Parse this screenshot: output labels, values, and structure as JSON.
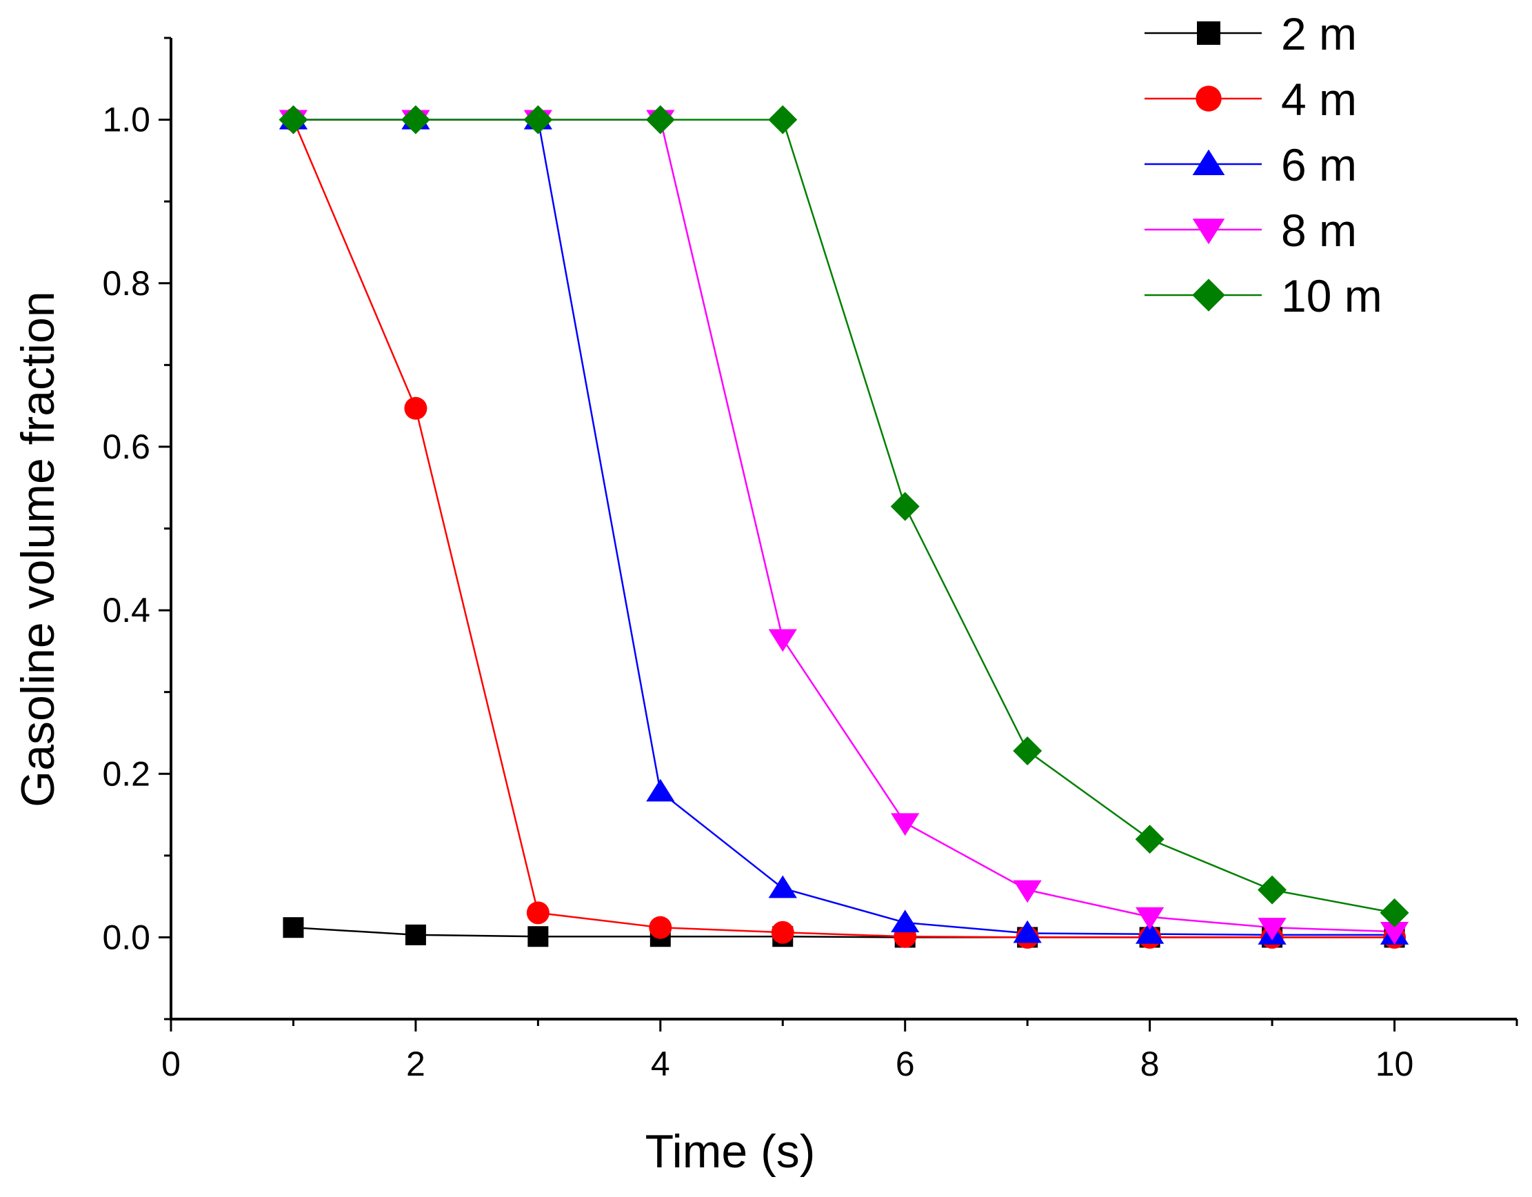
{
  "chart_data": {
    "type": "line",
    "title": "",
    "xlabel": "Time (s)",
    "ylabel": "Gasoline volume fraction",
    "xlim": [
      0,
      11
    ],
    "ylim": [
      -0.1,
      1.1
    ],
    "x_ticks": [
      0,
      2,
      4,
      6,
      8,
      10
    ],
    "x_tick_labels": [
      "0",
      "2",
      "4",
      "6",
      "8",
      "10"
    ],
    "y_ticks": [
      0.0,
      0.2,
      0.4,
      0.6,
      0.8,
      1.0
    ],
    "y_tick_labels": [
      "0.0",
      "0.2",
      "0.4",
      "0.6",
      "0.8",
      "1.0"
    ],
    "grid": false,
    "legend_position": "top-right",
    "series": [
      {
        "name": "2 m",
        "color": "#000000",
        "marker": "square",
        "x": [
          1,
          2,
          3,
          4,
          5,
          6,
          7,
          8,
          9,
          10
        ],
        "values": [
          0.012,
          0.003,
          0.001,
          0.001,
          0.001,
          0.0,
          0.0,
          0.0,
          0.0,
          0.0
        ]
      },
      {
        "name": "4 m",
        "color": "#ff0000",
        "marker": "circle",
        "x": [
          1,
          2,
          3,
          4,
          5,
          6,
          7,
          8,
          9,
          10
        ],
        "values": [
          1.0,
          0.647,
          0.03,
          0.012,
          0.006,
          0.001,
          0.0,
          0.0,
          0.0,
          0.0
        ]
      },
      {
        "name": "6 m",
        "color": "#0000ff",
        "marker": "triangle-up",
        "x": [
          1,
          2,
          3,
          4,
          5,
          6,
          7,
          8,
          9,
          10
        ],
        "values": [
          1.0,
          1.0,
          1.0,
          0.178,
          0.06,
          0.018,
          0.005,
          0.004,
          0.003,
          0.003
        ]
      },
      {
        "name": "8 m",
        "color": "#ff00ff",
        "marker": "triangle-down",
        "x": [
          1,
          2,
          3,
          4,
          5,
          6,
          7,
          8,
          9,
          10
        ],
        "values": [
          1.0,
          1.0,
          1.0,
          1.0,
          0.365,
          0.14,
          0.058,
          0.025,
          0.012,
          0.007
        ]
      },
      {
        "name": "10 m",
        "color": "#008000",
        "marker": "diamond",
        "x": [
          1,
          2,
          3,
          4,
          5,
          6,
          7,
          8,
          9,
          10
        ],
        "values": [
          1.0,
          1.0,
          1.0,
          1.0,
          1.0,
          0.527,
          0.228,
          0.12,
          0.058,
          0.03
        ]
      }
    ]
  }
}
